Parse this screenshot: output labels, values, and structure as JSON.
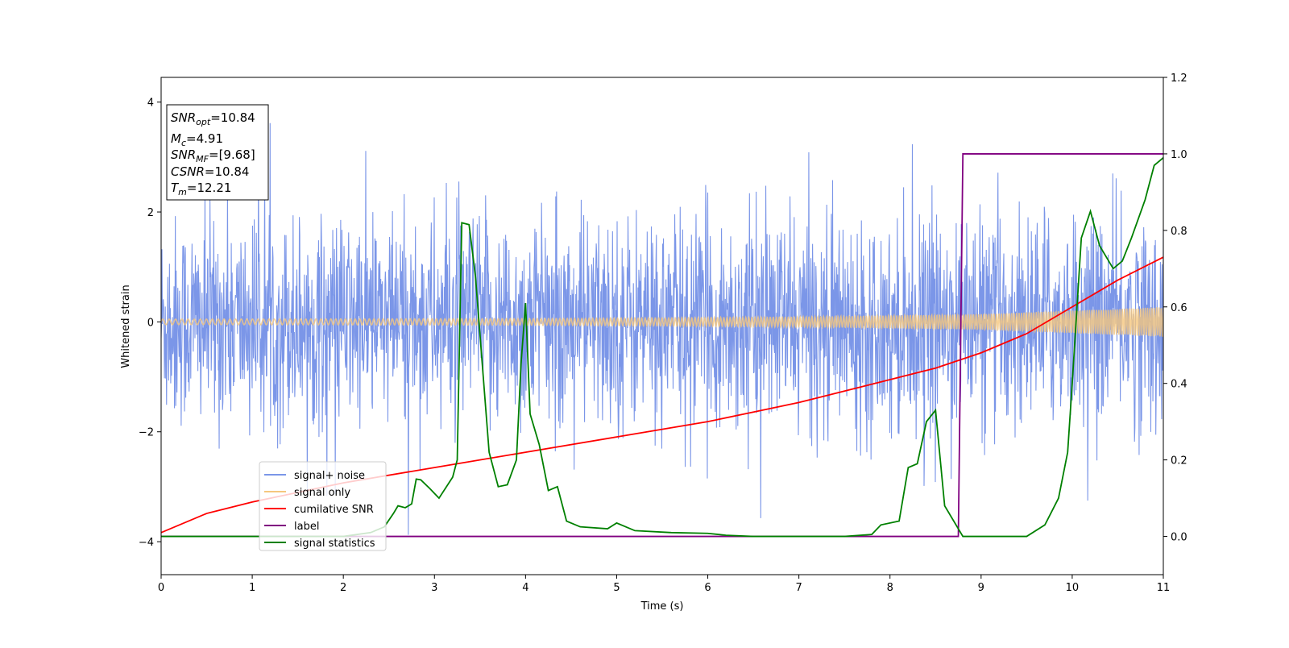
{
  "chart_data": {
    "type": "line",
    "title": "",
    "xlabel": "Time (s)",
    "ylabel": "Whitened strain",
    "xlim": [
      0,
      11
    ],
    "ylim_left": [
      -4.6,
      4.45
    ],
    "ylim_right": [
      -0.1,
      1.2
    ],
    "x_ticks": [
      "0",
      "1",
      "2",
      "3",
      "4",
      "5",
      "6",
      "7",
      "8",
      "9",
      "10",
      "11"
    ],
    "y_ticks_left": [
      "-4",
      "-2",
      "0",
      "2",
      "4"
    ],
    "y_ticks_right": [
      "0.0",
      "0.2",
      "0.4",
      "0.6",
      "0.8",
      "1.0",
      "1.2"
    ],
    "grid": false,
    "legend_position": "lower-left",
    "info_box": {
      "snr_opt": {
        "name": "SNR",
        "sub": "opt",
        "value": "=10.84"
      },
      "mc": {
        "name": "M",
        "sub": "c",
        "value": "=4.91"
      },
      "snr_mf": {
        "name": "SNR",
        "sub": "MF",
        "value": "=[9.68]"
      },
      "csnr": {
        "name": "CSNR",
        "value": "=10.84"
      },
      "tm": {
        "name": "T",
        "sub": "m",
        "value": "=12.21"
      }
    },
    "series": [
      {
        "name": "signal+ noise",
        "axis": "left",
        "color": "#7b96e8",
        "style": "dense noise band, roughly ±1.8 with spikes to ±3.5",
        "envelope": {
          "typical_abs": 1.8,
          "max_abs": 4.0
        }
      },
      {
        "name": "signal only",
        "axis": "left",
        "color": "#f5c77e",
        "style": "chirp oscillation with growing amplitude",
        "amplitude_points": [
          [
            0,
            0.05
          ],
          [
            4,
            0.06
          ],
          [
            7,
            0.09
          ],
          [
            9,
            0.14
          ],
          [
            11,
            0.27
          ]
        ]
      },
      {
        "name": "cumilative SNR",
        "axis": "right",
        "color": "#ff0000",
        "points": [
          [
            0,
            0.01
          ],
          [
            0.5,
            0.06
          ],
          [
            1,
            0.09
          ],
          [
            2,
            0.14
          ],
          [
            3,
            0.18
          ],
          [
            4,
            0.22
          ],
          [
            5,
            0.26
          ],
          [
            6,
            0.3
          ],
          [
            7,
            0.35
          ],
          [
            8,
            0.41
          ],
          [
            8.5,
            0.44
          ],
          [
            9,
            0.48
          ],
          [
            9.5,
            0.53
          ],
          [
            10,
            0.6
          ],
          [
            10.5,
            0.67
          ],
          [
            11,
            0.73
          ]
        ]
      },
      {
        "name": "label",
        "axis": "right",
        "color": "#800080",
        "points": [
          [
            0,
            0
          ],
          [
            8.75,
            0
          ],
          [
            8.8,
            1
          ],
          [
            11,
            1
          ]
        ]
      },
      {
        "name": "signal statistics",
        "axis": "right",
        "color": "#008000",
        "points": [
          [
            0,
            0
          ],
          [
            0.5,
            0.0
          ],
          [
            1,
            0.0
          ],
          [
            2,
            0.0
          ],
          [
            2.3,
            0.01
          ],
          [
            2.45,
            0.025
          ],
          [
            2.55,
            0.06
          ],
          [
            2.6,
            0.08
          ],
          [
            2.68,
            0.075
          ],
          [
            2.75,
            0.085
          ],
          [
            2.8,
            0.15
          ],
          [
            2.85,
            0.148
          ],
          [
            2.95,
            0.125
          ],
          [
            3.05,
            0.1
          ],
          [
            3.2,
            0.155
          ],
          [
            3.25,
            0.2
          ],
          [
            3.3,
            0.82
          ],
          [
            3.38,
            0.815
          ],
          [
            3.45,
            0.68
          ],
          [
            3.6,
            0.22
          ],
          [
            3.7,
            0.13
          ],
          [
            3.8,
            0.135
          ],
          [
            3.9,
            0.2
          ],
          [
            3.95,
            0.45
          ],
          [
            4.0,
            0.61
          ],
          [
            4.05,
            0.32
          ],
          [
            4.15,
            0.24
          ],
          [
            4.25,
            0.12
          ],
          [
            4.35,
            0.13
          ],
          [
            4.45,
            0.04
          ],
          [
            4.6,
            0.025
          ],
          [
            4.9,
            0.02
          ],
          [
            5.0,
            0.035
          ],
          [
            5.2,
            0.015
          ],
          [
            5.6,
            0.01
          ],
          [
            6.0,
            0.008
          ],
          [
            6.2,
            0.003
          ],
          [
            6.5,
            0.0
          ],
          [
            7.5,
            0.0
          ],
          [
            7.8,
            0.005
          ],
          [
            7.9,
            0.03
          ],
          [
            8.1,
            0.04
          ],
          [
            8.2,
            0.18
          ],
          [
            8.3,
            0.19
          ],
          [
            8.4,
            0.3
          ],
          [
            8.5,
            0.33
          ],
          [
            8.6,
            0.08
          ],
          [
            8.8,
            0.0
          ],
          [
            9.5,
            0.0
          ],
          [
            9.7,
            0.03
          ],
          [
            9.85,
            0.1
          ],
          [
            9.95,
            0.22
          ],
          [
            10.0,
            0.4
          ],
          [
            10.1,
            0.78
          ],
          [
            10.2,
            0.85
          ],
          [
            10.3,
            0.76
          ],
          [
            10.45,
            0.7
          ],
          [
            10.55,
            0.72
          ],
          [
            10.65,
            0.78
          ],
          [
            10.8,
            0.88
          ],
          [
            10.9,
            0.97
          ],
          [
            11.0,
            0.99
          ]
        ]
      }
    ]
  }
}
